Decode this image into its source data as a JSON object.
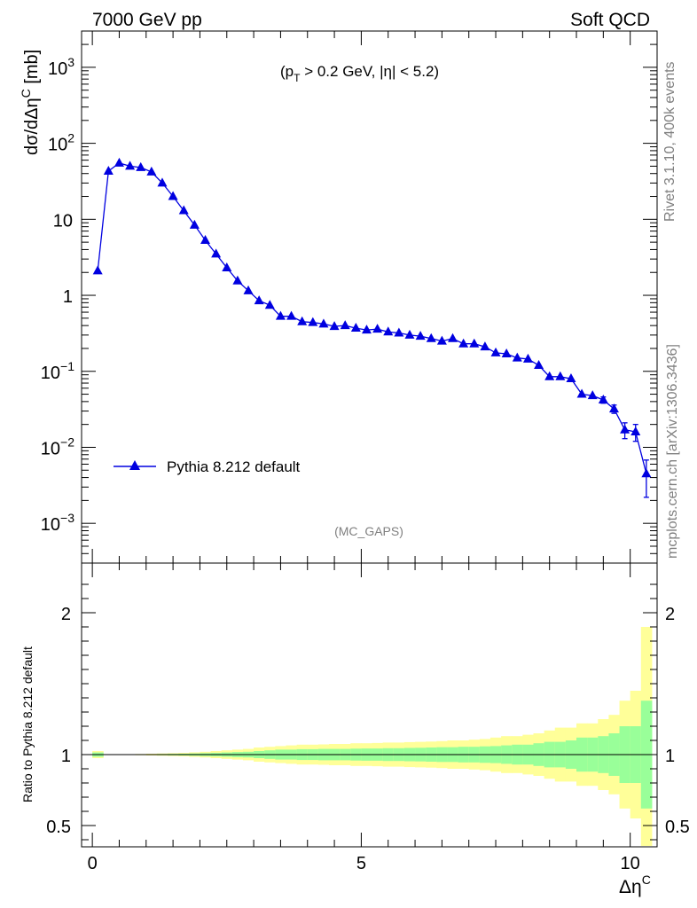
{
  "header": {
    "left": "7000 GeV pp",
    "right": "Soft QCD"
  },
  "cut_label": {
    "p": "(p",
    "sub": "T",
    "rest": " > 0.2 GeV, |η| < 5.2)"
  },
  "watermark": "(MC_GAPS)",
  "side_text": {
    "rivet": "Rivet 3.1.10,  400k events",
    "mcplots": "mcplots.cern.ch [arXiv:1306.3436]"
  },
  "legend": {
    "label": "Pythia 8.212 default"
  },
  "colors": {
    "series": "#0000e0",
    "band_inner": "#99ff99",
    "band_outer": "#ffff99"
  },
  "chart_data": [
    {
      "type": "line",
      "panel": "main",
      "ylabel": "dσ/dΔη^C [mb]",
      "yscale": "log",
      "ylim": [
        0.0003,
        3000
      ],
      "xlim": [
        -0.2,
        10.5
      ],
      "y_ticks": [
        {
          "value": 1000,
          "base": "10",
          "exp": "3"
        },
        {
          "value": 100,
          "base": "10",
          "exp": "2"
        },
        {
          "value": 10,
          "base": "10",
          "exp": ""
        },
        {
          "value": 1,
          "base": "1",
          "exp": ""
        },
        {
          "value": 0.1,
          "base": "10",
          "exp": "−1"
        },
        {
          "value": 0.01,
          "base": "10",
          "exp": "−2"
        },
        {
          "value": 0.001,
          "base": "10",
          "exp": "−3"
        }
      ],
      "legend_position": "left",
      "series": [
        {
          "name": "Pythia 8.212 default",
          "marker": "triangle",
          "x": [
            0.1,
            0.3,
            0.5,
            0.7,
            0.9,
            1.1,
            1.3,
            1.5,
            1.7,
            1.9,
            2.1,
            2.3,
            2.5,
            2.7,
            2.9,
            3.1,
            3.3,
            3.5,
            3.7,
            3.9,
            4.1,
            4.3,
            4.5,
            4.7,
            4.9,
            5.1,
            5.3,
            5.5,
            5.7,
            5.9,
            6.1,
            6.3,
            6.5,
            6.7,
            6.9,
            7.1,
            7.3,
            7.5,
            7.7,
            7.9,
            8.1,
            8.3,
            8.5,
            8.7,
            8.9,
            9.1,
            9.3,
            9.5,
            9.7,
            9.9,
            10.1,
            10.3
          ],
          "y": [
            2.1,
            43,
            55,
            50,
            48,
            42,
            30,
            20,
            13,
            8.4,
            5.3,
            3.5,
            2.3,
            1.55,
            1.15,
            0.85,
            0.74,
            0.53,
            0.53,
            0.45,
            0.44,
            0.42,
            0.39,
            0.4,
            0.37,
            0.35,
            0.36,
            0.33,
            0.32,
            0.3,
            0.29,
            0.27,
            0.25,
            0.27,
            0.23,
            0.23,
            0.21,
            0.175,
            0.17,
            0.15,
            0.145,
            0.12,
            0.085,
            0.085,
            0.08,
            0.05,
            0.048,
            0.042,
            0.032,
            0.017,
            0.016,
            0.0045
          ],
          "yerr": [
            0,
            0,
            0,
            0,
            0,
            0,
            0,
            0,
            0,
            0,
            0,
            0,
            0,
            0,
            0,
            0,
            0,
            0,
            0,
            0,
            0,
            0,
            0,
            0,
            0,
            0,
            0,
            0,
            0,
            0,
            0,
            0,
            0,
            0,
            0,
            0,
            0,
            0,
            0,
            0,
            0,
            0,
            0,
            0,
            0,
            0,
            0,
            0.004,
            0.004,
            0.004,
            0.004,
            0.0023
          ]
        }
      ]
    },
    {
      "type": "area",
      "panel": "ratio",
      "xlabel": "Δη^C",
      "ylabel": "Ratio to Pythia 8.212 default",
      "ylim": [
        0.35,
        2.35
      ],
      "xlim": [
        -0.2,
        10.5
      ],
      "x_ticks": [
        "0",
        "5",
        "10"
      ],
      "y_ticks": [
        "0.5",
        "1",
        "2"
      ],
      "reference_line": 1,
      "x_edges": [
        0,
        0.2,
        0.4,
        0.6,
        0.8,
        1.0,
        1.2,
        1.4,
        1.6,
        1.8,
        2.0,
        2.2,
        2.4,
        2.6,
        2.8,
        3.0,
        3.2,
        3.4,
        3.6,
        3.8,
        4.0,
        4.2,
        4.4,
        4.6,
        4.8,
        5.0,
        5.2,
        5.4,
        5.6,
        5.8,
        6.0,
        6.2,
        6.4,
        6.6,
        6.8,
        7.0,
        7.2,
        7.4,
        7.6,
        7.8,
        8.0,
        8.2,
        8.4,
        8.6,
        8.8,
        9.0,
        9.2,
        9.4,
        9.6,
        9.8,
        10.0,
        10.2,
        10.4
      ],
      "band_inner_halfwidth": [
        0.015,
        0.002,
        0.002,
        0.002,
        0.002,
        0.003,
        0.004,
        0.005,
        0.006,
        0.008,
        0.01,
        0.012,
        0.015,
        0.018,
        0.02,
        0.025,
        0.03,
        0.035,
        0.035,
        0.038,
        0.038,
        0.04,
        0.04,
        0.04,
        0.042,
        0.043,
        0.043,
        0.045,
        0.045,
        0.047,
        0.048,
        0.05,
        0.052,
        0.052,
        0.055,
        0.055,
        0.058,
        0.06,
        0.065,
        0.07,
        0.07,
        0.08,
        0.09,
        0.09,
        0.1,
        0.12,
        0.12,
        0.13,
        0.15,
        0.2,
        0.2,
        0.38
      ],
      "band_outer_halfwidth": [
        0.025,
        0.003,
        0.003,
        0.003,
        0.004,
        0.006,
        0.008,
        0.01,
        0.012,
        0.016,
        0.02,
        0.025,
        0.03,
        0.035,
        0.04,
        0.05,
        0.055,
        0.06,
        0.065,
        0.07,
        0.07,
        0.072,
        0.075,
        0.075,
        0.08,
        0.08,
        0.082,
        0.085,
        0.085,
        0.088,
        0.09,
        0.092,
        0.095,
        0.1,
        0.1,
        0.105,
        0.11,
        0.12,
        0.13,
        0.13,
        0.14,
        0.15,
        0.17,
        0.19,
        0.19,
        0.22,
        0.22,
        0.25,
        0.28,
        0.38,
        0.45,
        0.9
      ]
    }
  ]
}
